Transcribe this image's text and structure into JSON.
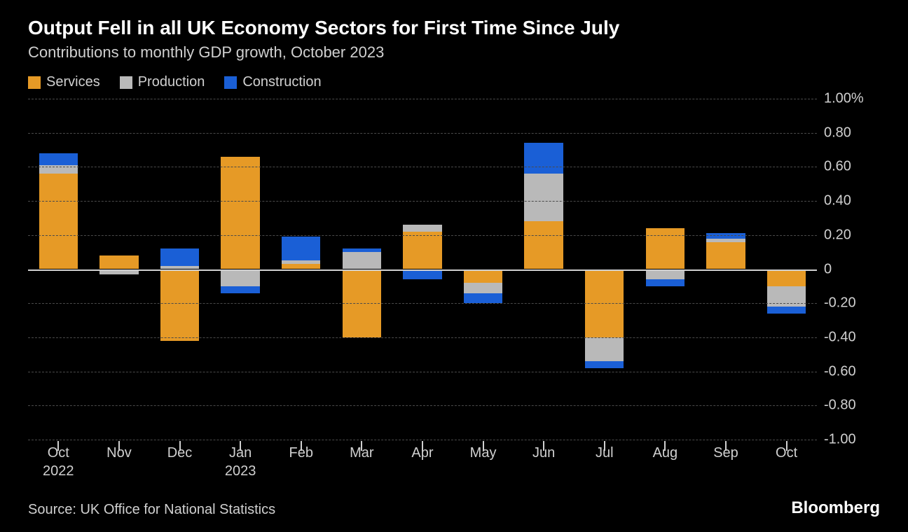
{
  "title": "Output Fell in all UK Economy Sectors for First Time Since July",
  "subtitle": "Contributions to monthly GDP growth, October 2023",
  "legend": [
    {
      "label": "Services",
      "color": "#e69a26"
    },
    {
      "label": "Production",
      "color": "#b9b9b9"
    },
    {
      "label": "Construction",
      "color": "#1a5fd6"
    }
  ],
  "chart": {
    "type": "stacked-bar",
    "background_color": "#000000",
    "grid_color": "#4a4a4a",
    "zero_color": "#d0d0d0",
    "text_color": "#d0d0d0",
    "font_size_axis": 20,
    "ylim": [
      -1.0,
      1.0
    ],
    "ytick_step": 0.2,
    "ytick_suffix_first": "%",
    "series_colors": {
      "services": "#e69a26",
      "production": "#b9b9b9",
      "construction": "#1a5fd6"
    },
    "categories": [
      {
        "label": "Oct",
        "sub": "2022"
      },
      {
        "label": "Nov",
        "sub": ""
      },
      {
        "label": "Dec",
        "sub": ""
      },
      {
        "label": "Jan",
        "sub": "2023"
      },
      {
        "label": "Feb",
        "sub": ""
      },
      {
        "label": "Mar",
        "sub": ""
      },
      {
        "label": "Apr",
        "sub": ""
      },
      {
        "label": "May",
        "sub": ""
      },
      {
        "label": "Jun",
        "sub": ""
      },
      {
        "label": "Jul",
        "sub": ""
      },
      {
        "label": "Aug",
        "sub": ""
      },
      {
        "label": "Sep",
        "sub": ""
      },
      {
        "label": "Oct",
        "sub": ""
      }
    ],
    "data": [
      {
        "services": 0.56,
        "production": 0.05,
        "construction": 0.07
      },
      {
        "services": 0.08,
        "production": -0.03,
        "construction": 0.0
      },
      {
        "services": -0.42,
        "production": 0.02,
        "construction": 0.1
      },
      {
        "services": 0.66,
        "production": -0.1,
        "construction": -0.04
      },
      {
        "services": 0.03,
        "production": 0.02,
        "construction": 0.14
      },
      {
        "services": -0.4,
        "production": 0.1,
        "construction": 0.02
      },
      {
        "services": 0.22,
        "production": 0.04,
        "construction": -0.06
      },
      {
        "services": -0.08,
        "production": -0.06,
        "construction": -0.06
      },
      {
        "services": 0.28,
        "production": 0.28,
        "construction": 0.18
      },
      {
        "services": -0.4,
        "production": -0.14,
        "construction": -0.04
      },
      {
        "services": 0.24,
        "production": -0.06,
        "construction": -0.04
      },
      {
        "services": 0.16,
        "production": 0.02,
        "construction": 0.03
      },
      {
        "services": -0.1,
        "production": -0.12,
        "construction": -0.04
      }
    ]
  },
  "source": "Source: UK Office for National Statistics",
  "brand": "Bloomberg"
}
